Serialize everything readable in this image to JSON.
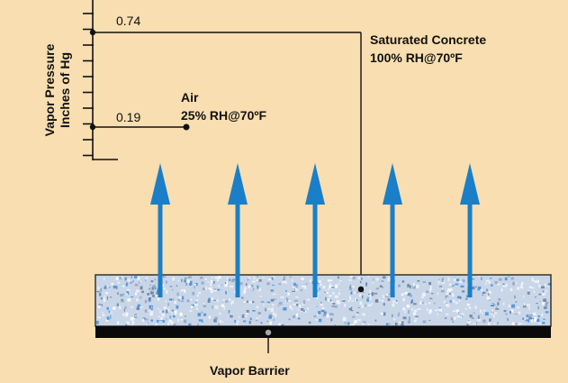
{
  "axis": {
    "title_line1": "Vapor Pressure",
    "title_line2": "Inches of Hg"
  },
  "readings": [
    {
      "value": "0.74",
      "label_line1": "Saturated Concrete",
      "label_line2": "100% RH@70ºF"
    },
    {
      "value": "0.19",
      "label_line1": "Air",
      "label_line2": "25% RH@70ºF"
    }
  ],
  "barrier": {
    "label": "Vapor Barrier"
  },
  "colors": {
    "background": "#f8deb0",
    "arrow": "#1a7fc8",
    "slab_base": "#c9d6e8",
    "slab_blue": "#3f8fd8",
    "barrier": "#0a0a0a",
    "line": "#111111"
  },
  "arrow_count": 5
}
